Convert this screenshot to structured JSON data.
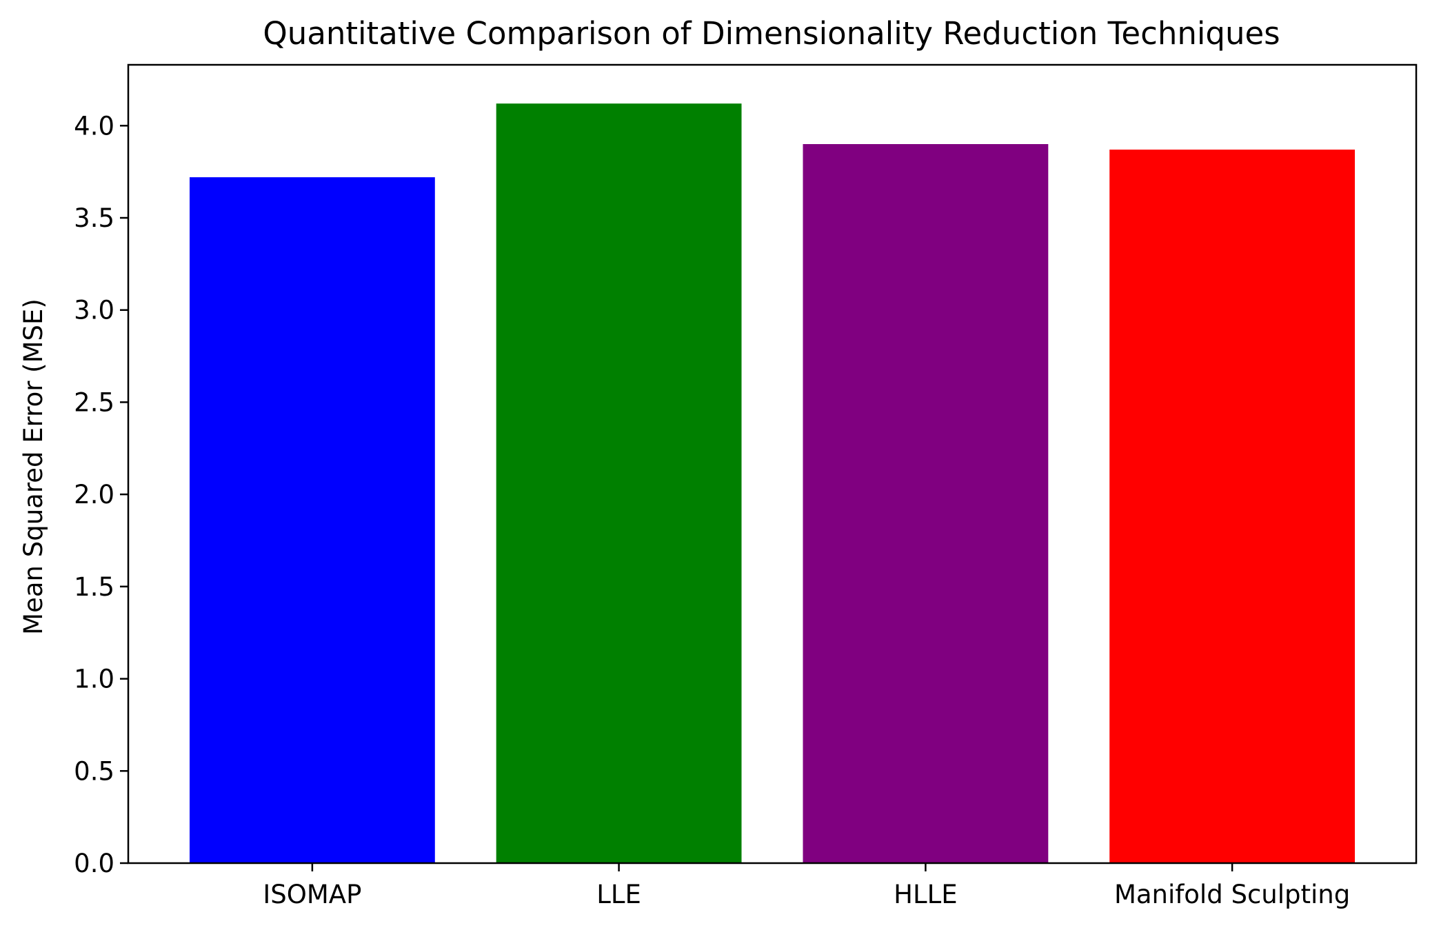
{
  "chart_data": {
    "type": "bar",
    "title": "Quantitative Comparison of Dimensionality Reduction Techniques",
    "xlabel": "",
    "ylabel": "Mean Squared Error (MSE)",
    "categories": [
      "ISOMAP",
      "LLE",
      "HLLE",
      "Manifold Sculpting"
    ],
    "values": [
      3.72,
      4.12,
      3.9,
      3.87
    ],
    "colors": [
      "#0000ff",
      "#008000",
      "#800080",
      "#ff0000"
    ],
    "ylim": [
      0,
      4.33
    ],
    "yticks": [
      0.0,
      0.5,
      1.0,
      1.5,
      2.0,
      2.5,
      3.0,
      3.5,
      4.0
    ],
    "ytick_labels": [
      "0.0",
      "0.5",
      "1.0",
      "1.5",
      "2.0",
      "2.5",
      "3.0",
      "3.5",
      "4.0"
    ],
    "grid": false,
    "legend": "none"
  }
}
